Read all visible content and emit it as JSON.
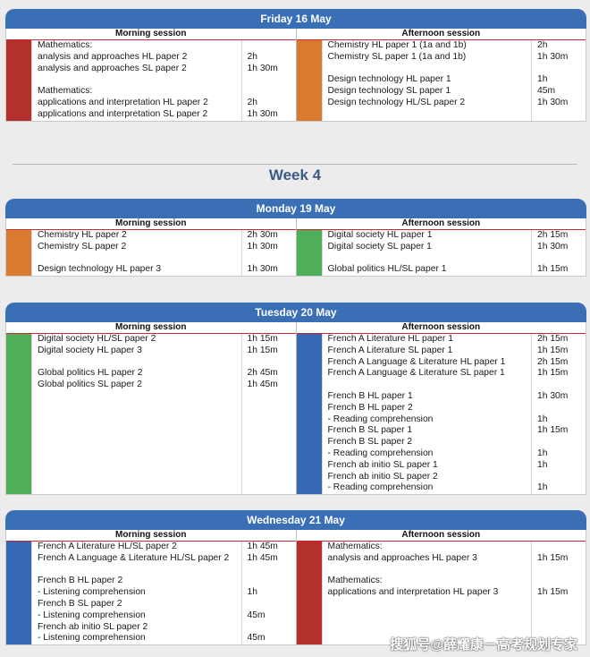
{
  "colors": {
    "header_blue": "#3a6fb6",
    "red": "#b3302c",
    "orange": "#d87a30",
    "green": "#4fae59",
    "blue": "#3568b5"
  },
  "week_heading": "Week 4",
  "watermark": "搜狐号@薛耀康－高考规划专家",
  "days": [
    {
      "title": "Friday 16 May",
      "morning": {
        "label": "Morning session",
        "bar_color": "red",
        "rows": [
          {
            "text": "Mathematics:",
            "dur": ""
          },
          {
            "text": "analysis and approaches HL paper 2",
            "dur": "2h"
          },
          {
            "text": "analysis and approaches SL paper 2",
            "dur": "1h 30m"
          },
          {
            "text": "",
            "dur": ""
          },
          {
            "text": "Mathematics:",
            "dur": ""
          },
          {
            "text": "applications and interpretation HL paper 2",
            "dur": "2h"
          },
          {
            "text": "applications and interpretation SL paper 2",
            "dur": "1h 30m"
          }
        ]
      },
      "afternoon": {
        "label": "Afternoon session",
        "bar_color": "orange",
        "rows": [
          {
            "text": "Chemistry HL paper 1 (1a and 1b)",
            "dur": "2h"
          },
          {
            "text": "Chemistry SL paper 1 (1a and 1b)",
            "dur": "1h 30m"
          },
          {
            "text": "",
            "dur": ""
          },
          {
            "text": "Design technology HL paper 1",
            "dur": "1h"
          },
          {
            "text": "Design technology SL paper 1",
            "dur": "45m"
          },
          {
            "text": "Design technology HL/SL paper 2",
            "dur": "1h 30m"
          }
        ]
      }
    },
    {
      "title": "Monday 19 May",
      "morning": {
        "label": "Morning session",
        "bar_color": "orange",
        "rows": [
          {
            "text": "Chemistry HL paper 2",
            "dur": "2h 30m"
          },
          {
            "text": "Chemistry SL paper 2",
            "dur": "1h 30m"
          },
          {
            "text": "",
            "dur": ""
          },
          {
            "text": "Design technology HL paper 3",
            "dur": "1h 30m"
          }
        ]
      },
      "afternoon": {
        "label": "Afternoon session",
        "bar_color": "green",
        "rows": [
          {
            "text": "Digital society HL paper 1",
            "dur": "2h 15m"
          },
          {
            "text": "Digital society SL paper 1",
            "dur": "1h 30m"
          },
          {
            "text": "",
            "dur": ""
          },
          {
            "text": "Global politics HL/SL paper 1",
            "dur": "1h 15m"
          }
        ]
      }
    },
    {
      "title": "Tuesday 20 May",
      "morning": {
        "label": "Morning session",
        "bar_color": "green",
        "rows": [
          {
            "text": "Digital society HL/SL paper 2",
            "dur": "1h 15m"
          },
          {
            "text": "Digital society HL paper 3",
            "dur": "1h 15m"
          },
          {
            "text": "",
            "dur": ""
          },
          {
            "text": "Global politics HL paper 2",
            "dur": "2h 45m"
          },
          {
            "text": "Global politics SL paper 2",
            "dur": "1h 45m"
          }
        ]
      },
      "afternoon": {
        "label": "Afternoon session",
        "bar_color": "blue",
        "rows": [
          {
            "text": "French A Literature HL paper 1",
            "dur": "2h 15m"
          },
          {
            "text": "French A Literature SL paper 1",
            "dur": "1h 15m"
          },
          {
            "text": "French A Language & Literature HL paper 1",
            "dur": "2h 15m"
          },
          {
            "text": "French A Language & Literature SL paper 1",
            "dur": "1h 15m"
          },
          {
            "text": "",
            "dur": ""
          },
          {
            "text": "French B HL paper 1",
            "dur": "1h 30m"
          },
          {
            "text": "French B HL paper 2",
            "dur": ""
          },
          {
            "text": "- Reading comprehension",
            "dur": "1h"
          },
          {
            "text": "French B SL paper 1",
            "dur": "1h 15m"
          },
          {
            "text": "French B SL paper 2",
            "dur": ""
          },
          {
            "text": "- Reading comprehension",
            "dur": "1h"
          },
          {
            "text": "French ab initio SL paper 1",
            "dur": "1h"
          },
          {
            "text": "French ab initio SL paper 2",
            "dur": ""
          },
          {
            "text": "- Reading comprehension",
            "dur": "1h"
          }
        ]
      }
    },
    {
      "title": "Wednesday 21 May",
      "morning": {
        "label": "Morning session",
        "bar_color": "blue",
        "rows": [
          {
            "text": "French A Literature HL/SL paper 2",
            "dur": "1h 45m"
          },
          {
            "text": "French A Language & Literature HL/SL paper 2",
            "dur": "1h 45m"
          },
          {
            "text": "",
            "dur": ""
          },
          {
            "text": "French B HL paper 2",
            "dur": ""
          },
          {
            "text": "- Listening comprehension",
            "dur": "1h"
          },
          {
            "text": "French B SL paper 2",
            "dur": ""
          },
          {
            "text": "- Listening comprehension",
            "dur": "45m"
          },
          {
            "text": "French ab initio SL paper 2",
            "dur": ""
          },
          {
            "text": "- Listening comprehension",
            "dur": "45m"
          }
        ]
      },
      "afternoon": {
        "label": "Afternoon session",
        "bar_color": "red",
        "rows": [
          {
            "text": "Mathematics:",
            "dur": ""
          },
          {
            "text": "analysis and approaches HL paper 3",
            "dur": "1h 15m"
          },
          {
            "text": "",
            "dur": ""
          },
          {
            "text": "Mathematics:",
            "dur": ""
          },
          {
            "text": "applications and interpretation HL paper 3",
            "dur": "1h 15m"
          }
        ]
      }
    }
  ]
}
